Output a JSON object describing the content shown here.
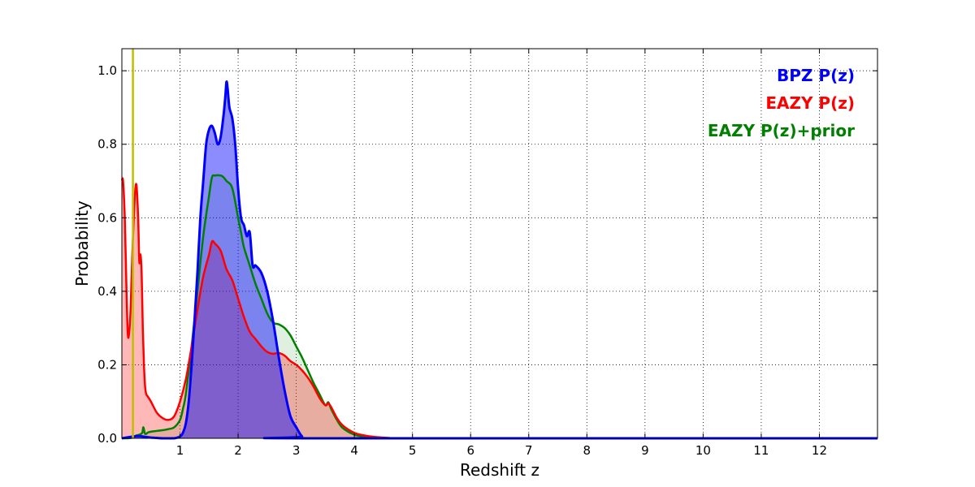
{
  "chart_data": {
    "type": "area",
    "title": "",
    "xlabel": "Redshift z",
    "ylabel": "Probability",
    "xlim": [
      0,
      13
    ],
    "ylim": [
      0,
      1.06
    ],
    "xticks": [
      1,
      2,
      3,
      4,
      5,
      6,
      7,
      8,
      9,
      10,
      11,
      12
    ],
    "xtick_labels": [
      "1",
      "2",
      "3",
      "4",
      "5",
      "6",
      "7",
      "8",
      "9",
      "10",
      "11",
      "12"
    ],
    "yticks": [
      0.0,
      0.2,
      0.4,
      0.6,
      0.8,
      1.0
    ],
    "ytick_labels": [
      "0.0",
      "0.2",
      "0.4",
      "0.6",
      "0.8",
      "1.0"
    ],
    "grid": true,
    "legend_position": "top-right",
    "reference_line": {
      "z": 0.19,
      "color": "#bfbf00"
    },
    "series": [
      {
        "name": "EAZY P(z)+prior",
        "label": "EAZY P(z)+prior",
        "color": "#008000",
        "fill": "#008000",
        "fill_opacity": 0.12,
        "z": [
          0.0,
          0.1,
          0.2,
          0.25,
          0.3,
          0.35,
          0.37,
          0.4,
          0.45,
          0.5,
          0.6,
          0.7,
          0.8,
          0.9,
          1.0,
          1.05,
          1.1,
          1.2,
          1.3,
          1.4,
          1.5,
          1.55,
          1.6,
          1.7,
          1.75,
          1.8,
          1.9,
          2.0,
          2.05,
          2.1,
          2.2,
          2.3,
          2.4,
          2.5,
          2.6,
          2.7,
          2.8,
          2.9,
          3.0,
          3.1,
          3.2,
          3.3,
          3.4,
          3.5,
          3.55,
          3.6,
          3.7,
          3.8,
          4.0,
          4.2,
          4.4,
          5.0,
          13.0
        ],
        "p": [
          0.0,
          0.0,
          0.003,
          0.008,
          0.01,
          0.015,
          0.03,
          0.012,
          0.016,
          0.018,
          0.02,
          0.022,
          0.025,
          0.03,
          0.05,
          0.08,
          0.12,
          0.25,
          0.4,
          0.55,
          0.66,
          0.71,
          0.715,
          0.715,
          0.71,
          0.7,
          0.68,
          0.6,
          0.56,
          0.52,
          0.47,
          0.42,
          0.38,
          0.34,
          0.315,
          0.31,
          0.3,
          0.28,
          0.25,
          0.22,
          0.185,
          0.15,
          0.12,
          0.09,
          0.098,
          0.08,
          0.05,
          0.028,
          0.01,
          0.004,
          0.001,
          0.0,
          0.0
        ]
      },
      {
        "name": "EAZY P(z)",
        "label": "EAZY P(z)",
        "color": "#ff0000",
        "fill": "#ff0000",
        "fill_opacity": 0.28,
        "z": [
          0.0,
          0.02,
          0.05,
          0.08,
          0.1,
          0.12,
          0.15,
          0.18,
          0.22,
          0.25,
          0.28,
          0.3,
          0.32,
          0.34,
          0.36,
          0.38,
          0.4,
          0.42,
          0.44,
          0.5,
          0.6,
          0.7,
          0.8,
          0.9,
          1.0,
          1.1,
          1.2,
          1.3,
          1.4,
          1.5,
          1.55,
          1.6,
          1.7,
          1.8,
          1.9,
          2.0,
          2.1,
          2.2,
          2.3,
          2.4,
          2.5,
          2.6,
          2.7,
          2.8,
          2.9,
          3.0,
          3.1,
          3.2,
          3.3,
          3.4,
          3.5,
          3.55,
          3.6,
          3.7,
          3.8,
          4.0,
          4.2,
          4.4,
          4.6,
          5.0,
          13.0
        ],
        "p": [
          0.7,
          0.7,
          0.6,
          0.4,
          0.29,
          0.28,
          0.35,
          0.5,
          0.65,
          0.69,
          0.6,
          0.48,
          0.5,
          0.45,
          0.3,
          0.2,
          0.14,
          0.12,
          0.115,
          0.1,
          0.07,
          0.055,
          0.05,
          0.06,
          0.1,
          0.16,
          0.25,
          0.35,
          0.44,
          0.5,
          0.535,
          0.53,
          0.51,
          0.46,
          0.43,
          0.38,
          0.33,
          0.29,
          0.27,
          0.25,
          0.235,
          0.23,
          0.232,
          0.225,
          0.21,
          0.2,
          0.185,
          0.165,
          0.14,
          0.11,
          0.09,
          0.095,
          0.085,
          0.055,
          0.035,
          0.015,
          0.007,
          0.003,
          0.001,
          0.0,
          0.0
        ]
      },
      {
        "name": "BPZ P(z)",
        "label": "BPZ P(z)",
        "color": "#0000ff",
        "fill": "#0000ff",
        "fill_opacity": 0.45,
        "z": [
          0.0,
          0.2,
          0.3,
          0.4,
          0.5,
          0.6,
          0.7,
          0.8,
          0.9,
          1.0,
          1.05,
          1.1,
          1.15,
          1.2,
          1.25,
          1.3,
          1.35,
          1.4,
          1.45,
          1.5,
          1.55,
          1.6,
          1.65,
          1.7,
          1.75,
          1.78,
          1.8,
          1.82,
          1.85,
          1.9,
          1.95,
          2.0,
          2.05,
          2.1,
          2.15,
          2.2,
          2.25,
          2.3,
          2.4,
          2.5,
          2.6,
          2.7,
          2.8,
          2.9,
          3.0,
          3.1,
          3.2,
          13.0
        ],
        "p": [
          0.0,
          0.005,
          0.006,
          0.004,
          0.002,
          0.001,
          0.0,
          0.0,
          0.0,
          0.005,
          0.015,
          0.04,
          0.1,
          0.2,
          0.32,
          0.45,
          0.6,
          0.7,
          0.8,
          0.84,
          0.85,
          0.83,
          0.8,
          0.82,
          0.88,
          0.93,
          0.97,
          0.95,
          0.9,
          0.87,
          0.8,
          0.68,
          0.6,
          0.58,
          0.55,
          0.56,
          0.47,
          0.47,
          0.45,
          0.4,
          0.32,
          0.22,
          0.13,
          0.06,
          0.03,
          0.005,
          0.0,
          0.0
        ]
      }
    ]
  }
}
